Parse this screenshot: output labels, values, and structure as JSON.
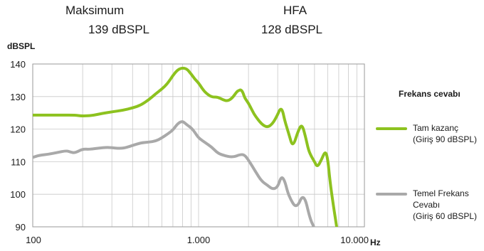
{
  "header": {
    "max_label": "Maksimum",
    "max_value": "139 dBSPL",
    "hfa_label": "HFA",
    "hfa_value": "128 dBSPL"
  },
  "legend": {
    "title": "Frekans cevabı",
    "items": [
      {
        "lines": [
          "Tam kazanç",
          "(Giriş 90 dBSPL)"
        ],
        "color": "#8dc21f"
      },
      {
        "lines": [
          "Temel Frekans",
          "Cevabı",
          "(Giriş 60 dBSPL)"
        ],
        "color": "#a9a9a9"
      }
    ]
  },
  "chart_data": {
    "type": "line",
    "xscale": "log",
    "xlim": [
      100,
      10000
    ],
    "ylim": [
      90,
      140
    ],
    "xlabel": "Hz",
    "ylabel": "dBSPL",
    "xticks": [
      100,
      1000,
      10000
    ],
    "xtick_labels": [
      "100",
      "1.000",
      "10.000"
    ],
    "yticks": [
      90,
      100,
      110,
      120,
      130,
      140
    ],
    "ytick_labels": [
      "90",
      "100",
      "110",
      "120",
      "130",
      "140"
    ],
    "grid": true,
    "legend_position": "right",
    "series": [
      {
        "name": "Tam kazanç (Giriş 90 dBSPL)",
        "color": "#8dc21f",
        "x": [
          100,
          150,
          180,
          200,
          230,
          260,
          300,
          350,
          400,
          450,
          500,
          550,
          600,
          650,
          700,
          750,
          800,
          850,
          900,
          950,
          1000,
          1050,
          1100,
          1200,
          1300,
          1400,
          1500,
          1600,
          1700,
          1750,
          1800,
          1850,
          1900,
          2000,
          2100,
          2200,
          2400,
          2600,
          2800,
          3000,
          3100,
          3200,
          3300,
          3500,
          3700,
          4000,
          4200,
          4400,
          4600,
          4800,
          5000,
          5200,
          5500,
          5800,
          6000,
          6200,
          6500,
          6800
        ],
        "y": [
          124.3,
          124.3,
          124.3,
          124,
          124.2,
          124.8,
          125.3,
          125.8,
          126.5,
          127.4,
          129,
          130.8,
          132.3,
          134,
          136.5,
          138.3,
          138.8,
          138.5,
          137,
          135.3,
          134.2,
          132.5,
          131.2,
          129.8,
          129.9,
          129,
          128.6,
          129.6,
          131.5,
          131.9,
          132.1,
          131.3,
          129.5,
          128,
          125.8,
          124,
          121.5,
          120.5,
          121.7,
          124.5,
          126.2,
          126,
          122.8,
          118.5,
          114.3,
          119.7,
          121.5,
          118,
          113.5,
          111.5,
          110,
          108.3,
          110.5,
          113.3,
          111.2,
          104,
          96.5,
          90
        ]
      },
      {
        "name": "Temel Frekans Cevabı (Giriş 60 dBSPL)",
        "color": "#a9a9a9",
        "x": [
          100,
          110,
          125,
          140,
          160,
          170,
          180,
          200,
          220,
          250,
          280,
          300,
          330,
          360,
          400,
          450,
          500,
          550,
          600,
          650,
          700,
          750,
          800,
          850,
          900,
          950,
          1000,
          1100,
          1200,
          1300,
          1400,
          1600,
          1800,
          1900,
          2000,
          2200,
          2400,
          2600,
          2800,
          3000,
          3150,
          3300,
          3450,
          3600,
          3800,
          4000,
          4200,
          4400,
          4600,
          4750,
          4850,
          4950
        ],
        "y": [
          111.3,
          112,
          112.3,
          112.8,
          113.4,
          112.9,
          112.7,
          113.9,
          113.8,
          114.2,
          114.4,
          114.3,
          114.1,
          114.2,
          115,
          115.8,
          116,
          116.3,
          117.3,
          118.5,
          119.7,
          121.8,
          122.5,
          121.3,
          120.5,
          119,
          117.3,
          115.8,
          114.5,
          112.7,
          112,
          111.3,
          112.3,
          112,
          110.5,
          107,
          104,
          102.8,
          101.5,
          102.2,
          105.5,
          104.3,
          100.5,
          98.3,
          96.3,
          96.8,
          99.3,
          98.5,
          94.5,
          92,
          91,
          90
        ]
      }
    ]
  }
}
